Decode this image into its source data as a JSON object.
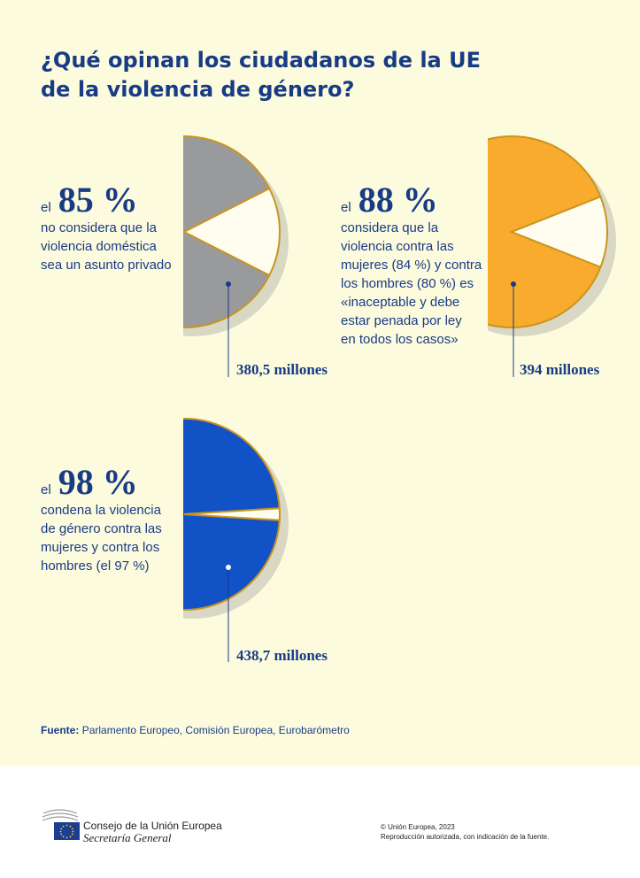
{
  "title": {
    "line1": "¿Qué opinan los ciudadanos de la UE",
    "line2": "de la violencia de género?"
  },
  "chart_data": [
    {
      "type": "pie",
      "prefix": "el",
      "percent_label": "85 %",
      "values": [
        85,
        15
      ],
      "description": [
        "no considera que la",
        "violencia doméstica",
        "sea un asunto privado"
      ],
      "population": "380,5 millones",
      "color": "#999a9c"
    },
    {
      "type": "pie",
      "prefix": "el",
      "percent_label": "88 %",
      "values": [
        88,
        12
      ],
      "description": [
        "considera que la",
        "violencia contra las",
        "mujeres (84 %) y contra",
        "los hombres (80 %) es",
        "«inaceptable y debe",
        "estar penada por ley",
        "en todos los casos»"
      ],
      "population": "394 millones",
      "color": "#f9ab2e"
    },
    {
      "type": "pie",
      "prefix": "el",
      "percent_label": "98 %",
      "values": [
        98,
        2
      ],
      "description": [
        "condena la violencia",
        "de género contra las",
        "mujeres y contra los",
        "hombres (el 97 %)"
      ],
      "population": "438,7 millones",
      "color": "#1152c6"
    }
  ],
  "colors": {
    "text": "#173b85",
    "background": "#fdfbde",
    "pie_border": "#c9951e",
    "shadow": "#d9d8c4",
    "remainder": "#fffdf0"
  },
  "source": {
    "label": "Fuente:",
    "text": "Parlamento Europeo, Comisión Europea, Eurobarómetro"
  },
  "footer": {
    "org_name": "Consejo de la Unión Europea",
    "org_sub": "Secretaría General",
    "copyright": "© Unión Europea, 2023",
    "reproduction": "Reproducción autorizada, con indicación de la fuente."
  }
}
